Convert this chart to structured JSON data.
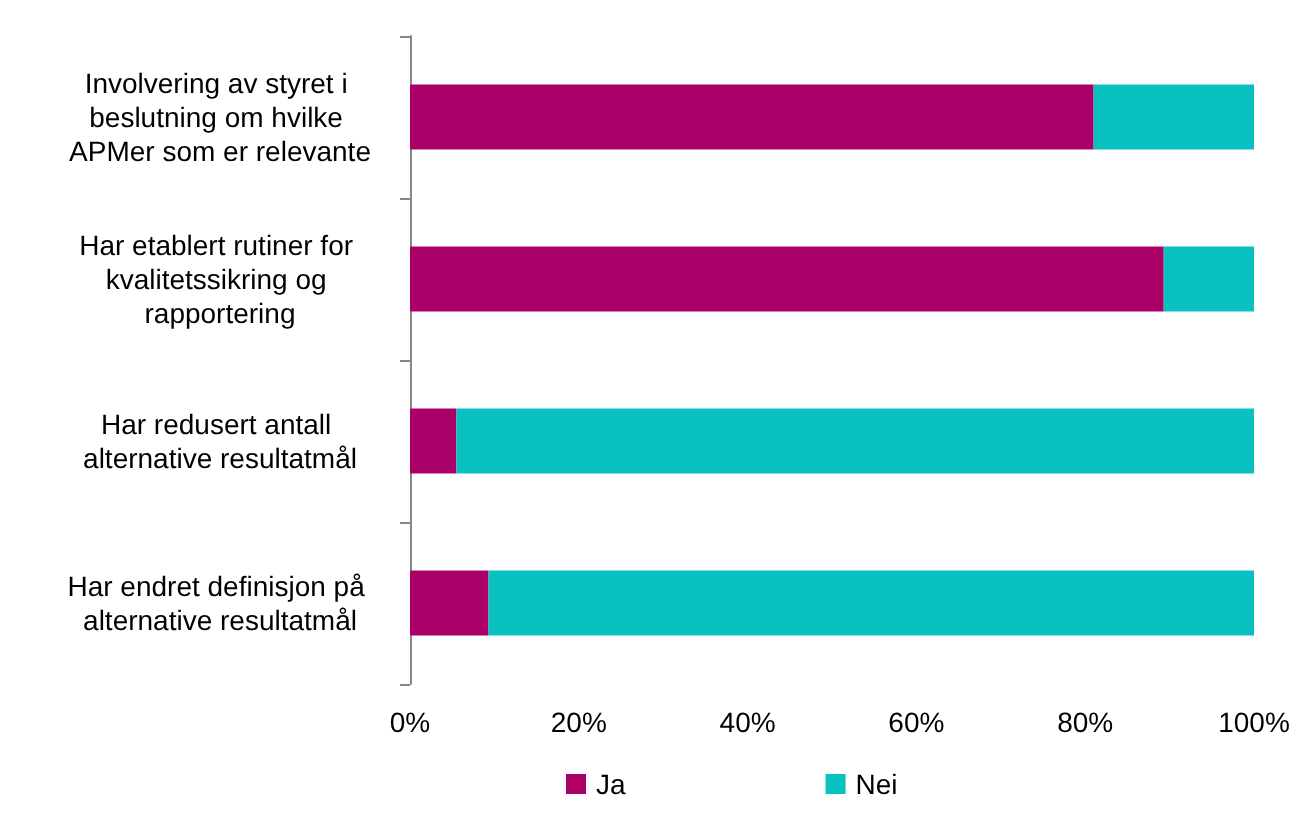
{
  "chart_data": {
    "type": "bar",
    "orientation": "horizontal",
    "stacked": true,
    "categories": [
      "Involvering av styret i beslutning om hvilke APMer som er relevante",
      "Har etablert rutiner for kvalitetssikring og rapportering",
      "Har redusert antall alternative resultatmål",
      "Har endret definisjon på alternative resultatmål"
    ],
    "series": [
      {
        "name": "Ja",
        "color": "#ab0068",
        "values": [
          81,
          89.3,
          5.5,
          9.3
        ]
      },
      {
        "name": "Nei",
        "color": "#0ac1c2",
        "values": [
          19,
          10.7,
          94.5,
          90.7
        ]
      }
    ],
    "xlim": [
      0,
      100
    ],
    "xticks": [
      {
        "value": 0,
        "label": "0%"
      },
      {
        "value": 20,
        "label": "20%"
      },
      {
        "value": 40,
        "label": "40%"
      },
      {
        "value": 60,
        "label": "60%"
      },
      {
        "value": 80,
        "label": "80%"
      },
      {
        "value": 100,
        "label": "100%"
      }
    ],
    "grid": false,
    "legend": "bottom"
  }
}
